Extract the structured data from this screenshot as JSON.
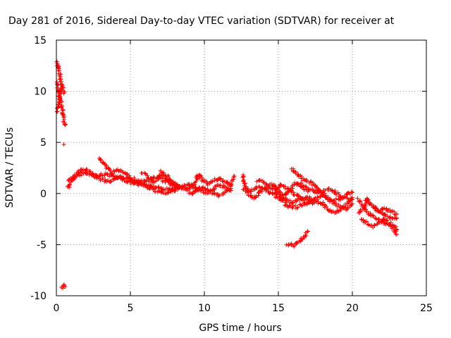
{
  "chart_data": {
    "type": "scatter",
    "title": "Day 281 of 2016, Sidereal Day-to-day VTEC variation (SDTVAR) for receiver at",
    "xlabel": "GPS time / hours",
    "ylabel": "SDTVAR / TECUs",
    "xlim": [
      0,
      25
    ],
    "ylim": [
      -10,
      15
    ],
    "xticks": [
      "0",
      "5",
      "10",
      "15",
      "20",
      "25"
    ],
    "yticks": [
      "-10",
      "-5",
      "0",
      "5",
      "10",
      "15"
    ],
    "grid": true,
    "marker": "+",
    "color": "#ff0000",
    "series": [
      {
        "points": [
          [
            0.05,
            12.9
          ],
          [
            0.1,
            12.6
          ],
          [
            0.15,
            12.2
          ],
          [
            0.2,
            11.8
          ],
          [
            0.25,
            11.4
          ],
          [
            0.3,
            11.1
          ],
          [
            0.35,
            10.9
          ],
          [
            0.4,
            10.6
          ],
          [
            0.45,
            10.2
          ],
          [
            0.5,
            9.8
          ]
        ]
      },
      {
        "points": [
          [
            0.05,
            10.9
          ],
          [
            0.1,
            10.4
          ],
          [
            0.15,
            10.0
          ],
          [
            0.2,
            9.6
          ],
          [
            0.25,
            9.3
          ],
          [
            0.3,
            9.0
          ],
          [
            0.35,
            8.6
          ],
          [
            0.4,
            8.2
          ],
          [
            0.45,
            7.8
          ],
          [
            0.5,
            7.4
          ],
          [
            0.55,
            7.0
          ],
          [
            0.6,
            6.7
          ]
        ]
      },
      {
        "points": [
          [
            0.1,
            8.0
          ],
          [
            0.15,
            8.6
          ],
          [
            0.2,
            9.2
          ],
          [
            0.25,
            9.8
          ],
          [
            0.3,
            10.3
          ]
        ]
      },
      {
        "points": [
          [
            0.5,
            4.8
          ]
        ]
      },
      {
        "points": [
          [
            0.4,
            -9.2
          ],
          [
            0.5,
            -9.0
          ],
          [
            0.6,
            -9.1
          ]
        ]
      },
      {
        "points": [
          [
            0.8,
            0.5
          ],
          [
            1.0,
            1.2
          ],
          [
            1.3,
            1.8
          ],
          [
            1.6,
            2.2
          ],
          [
            1.9,
            2.4
          ],
          [
            2.2,
            2.2
          ],
          [
            2.5,
            1.9
          ],
          [
            2.8,
            1.7
          ],
          [
            3.2,
            1.9
          ],
          [
            3.6,
            1.8
          ],
          [
            4.0,
            1.6
          ],
          [
            4.4,
            1.4
          ],
          [
            4.8,
            1.2
          ],
          [
            5.2,
            1.0
          ],
          [
            5.6,
            0.9
          ],
          [
            6.0,
            0.8
          ],
          [
            6.5,
            0.7
          ],
          [
            7.0,
            0.5
          ],
          [
            7.5,
            0.4
          ],
          [
            8.0,
            0.5
          ]
        ]
      },
      {
        "points": [
          [
            0.8,
            1.3
          ],
          [
            1.2,
            1.5
          ],
          [
            1.6,
            1.9
          ],
          [
            2.0,
            2.0
          ],
          [
            2.4,
            1.8
          ],
          [
            2.8,
            1.5
          ],
          [
            3.2,
            1.3
          ],
          [
            3.6,
            1.2
          ],
          [
            4.0,
            1.4
          ],
          [
            4.4,
            1.6
          ],
          [
            4.8,
            1.5
          ],
          [
            5.2,
            1.3
          ],
          [
            5.6,
            1.1
          ],
          [
            6.0,
            1.2
          ],
          [
            6.4,
            1.4
          ],
          [
            6.8,
            1.6
          ],
          [
            7.2,
            1.3
          ],
          [
            7.6,
            1.0
          ],
          [
            8.0,
            0.8
          ],
          [
            8.5,
            0.6
          ]
        ]
      },
      {
        "points": [
          [
            2.9,
            3.4
          ],
          [
            3.2,
            2.9
          ],
          [
            3.5,
            2.4
          ],
          [
            3.8,
            2.0
          ],
          [
            4.2,
            2.3
          ],
          [
            4.6,
            2.0
          ],
          [
            5.0,
            1.6
          ],
          [
            5.4,
            1.3
          ],
          [
            5.8,
            1.0
          ],
          [
            6.2,
            0.6
          ],
          [
            6.6,
            0.3
          ],
          [
            7.0,
            0.2
          ],
          [
            7.4,
            0.1
          ],
          [
            7.8,
            0.3
          ],
          [
            8.2,
            0.4
          ]
        ]
      },
      {
        "points": [
          [
            5.8,
            2.0
          ],
          [
            6.2,
            1.6
          ],
          [
            6.6,
            1.1
          ],
          [
            7.0,
            1.8
          ],
          [
            7.4,
            1.5
          ],
          [
            7.8,
            1.0
          ],
          [
            8.2,
            0.6
          ],
          [
            8.6,
            0.7
          ],
          [
            9.0,
            0.9
          ],
          [
            9.4,
            0.5
          ],
          [
            9.8,
            0.2
          ],
          [
            10.2,
            0.1
          ],
          [
            10.6,
            0.4
          ],
          [
            11.0,
            0.8
          ],
          [
            11.4,
            0.6
          ],
          [
            11.8,
            0.3
          ]
        ]
      },
      {
        "points": [
          [
            7.0,
            2.1
          ],
          [
            7.4,
            1.8
          ],
          [
            7.8,
            1.2
          ],
          [
            8.2,
            0.8
          ],
          [
            8.6,
            0.5
          ],
          [
            9.0,
            0.4
          ],
          [
            9.4,
            1.0
          ],
          [
            9.6,
            1.9
          ],
          [
            9.9,
            1.3
          ],
          [
            10.2,
            0.9
          ],
          [
            10.6,
            1.2
          ],
          [
            11.0,
            1.5
          ],
          [
            11.4,
            1.1
          ],
          [
            11.8,
            0.7
          ],
          [
            12.0,
            1.7
          ]
        ]
      },
      {
        "points": [
          [
            9.0,
            0.0
          ],
          [
            9.4,
            0.2
          ],
          [
            9.8,
            0.6
          ],
          [
            10.2,
            0.3
          ],
          [
            10.6,
            0.0
          ],
          [
            11.0,
            -0.2
          ],
          [
            11.4,
            0.1
          ],
          [
            11.8,
            0.5
          ]
        ]
      },
      {
        "points": [
          [
            12.6,
            1.8
          ],
          [
            12.7,
            1.2
          ],
          [
            12.8,
            0.5
          ],
          [
            13.0,
            0.1
          ],
          [
            13.3,
            0.3
          ],
          [
            13.6,
            0.6
          ],
          [
            14.0,
            0.5
          ],
          [
            14.4,
            0.1
          ],
          [
            14.8,
            0.0
          ],
          [
            15.2,
            -0.3
          ],
          [
            15.6,
            -0.7
          ],
          [
            16.0,
            -0.9
          ],
          [
            16.4,
            -0.6
          ],
          [
            16.8,
            -0.4
          ],
          [
            17.2,
            -0.5
          ]
        ]
      },
      {
        "points": [
          [
            12.6,
            0.5
          ],
          [
            13.0,
            -0.1
          ],
          [
            13.4,
            -0.4
          ],
          [
            13.8,
            0.2
          ],
          [
            14.2,
            0.6
          ],
          [
            14.6,
            0.9
          ],
          [
            15.0,
            0.2
          ],
          [
            15.4,
            -0.2
          ],
          [
            15.8,
            0.4
          ],
          [
            16.2,
            1.0
          ],
          [
            16.6,
            0.6
          ],
          [
            17.0,
            0.2
          ]
        ]
      },
      {
        "points": [
          [
            13.6,
            1.3
          ],
          [
            14.0,
            1.1
          ],
          [
            14.4,
            0.6
          ],
          [
            14.8,
            0.4
          ],
          [
            15.2,
            0.9
          ],
          [
            15.6,
            0.5
          ],
          [
            16.0,
            0.0
          ],
          [
            16.4,
            -0.3
          ],
          [
            16.8,
            -0.6
          ],
          [
            17.2,
            -0.8
          ],
          [
            17.6,
            -0.5
          ],
          [
            18.0,
            -0.2
          ],
          [
            18.4,
            -0.6
          ],
          [
            18.8,
            -1.0
          ],
          [
            19.2,
            -1.3
          ],
          [
            19.6,
            -1.5
          ],
          [
            20.0,
            -1.0
          ]
        ]
      },
      {
        "points": [
          [
            14.8,
            -0.3
          ],
          [
            15.2,
            -0.6
          ],
          [
            15.6,
            -1.2
          ],
          [
            16.0,
            -1.4
          ],
          [
            16.4,
            -1.2
          ],
          [
            16.8,
            -1.0
          ],
          [
            17.2,
            -0.9
          ],
          [
            17.6,
            -0.8
          ],
          [
            18.0,
            -1.0
          ],
          [
            18.4,
            -1.6
          ],
          [
            18.8,
            -1.8
          ],
          [
            19.2,
            -1.6
          ],
          [
            19.6,
            -1.0
          ],
          [
            20.0,
            -0.4
          ]
        ]
      },
      {
        "points": [
          [
            15.6,
            -4.9
          ],
          [
            16.0,
            -5.1
          ],
          [
            16.4,
            -4.7
          ],
          [
            16.7,
            -4.3
          ],
          [
            17.0,
            -3.7
          ]
        ]
      },
      {
        "points": [
          [
            15.9,
            2.4
          ],
          [
            16.2,
            2.1
          ],
          [
            16.6,
            1.4
          ],
          [
            17.0,
            1.2
          ],
          [
            17.4,
            0.9
          ],
          [
            17.8,
            0.3
          ],
          [
            18.2,
            -0.3
          ],
          [
            18.6,
            -0.7
          ],
          [
            19.0,
            -0.6
          ],
          [
            19.4,
            -0.3
          ],
          [
            19.8,
            0.0
          ],
          [
            20.0,
            0.1
          ]
        ]
      },
      {
        "points": [
          [
            16.4,
            1.0
          ],
          [
            16.8,
            0.7
          ],
          [
            17.2,
            0.4
          ],
          [
            17.6,
            0.1
          ],
          [
            18.0,
            0.2
          ],
          [
            18.4,
            0.5
          ],
          [
            18.8,
            0.2
          ],
          [
            19.2,
            -0.2
          ],
          [
            19.6,
            -0.5
          ],
          [
            20.0,
            -0.6
          ]
        ]
      },
      {
        "points": [
          [
            20.4,
            -0.6
          ],
          [
            20.7,
            -1.2
          ],
          [
            21.0,
            -1.8
          ],
          [
            21.3,
            -2.2
          ],
          [
            21.6,
            -2.4
          ],
          [
            21.9,
            -2.6
          ],
          [
            22.2,
            -2.9
          ],
          [
            22.5,
            -3.1
          ],
          [
            22.8,
            -3.4
          ],
          [
            23.0,
            -4.0
          ]
        ]
      },
      {
        "points": [
          [
            20.4,
            -1.8
          ],
          [
            20.8,
            -1.4
          ],
          [
            21.0,
            -0.4
          ],
          [
            21.2,
            -1.0
          ],
          [
            21.6,
            -1.6
          ],
          [
            22.0,
            -2.0
          ],
          [
            22.4,
            -2.2
          ],
          [
            22.8,
            -2.5
          ],
          [
            23.0,
            -2.4
          ]
        ]
      },
      {
        "points": [
          [
            20.6,
            -2.5
          ],
          [
            21.0,
            -2.9
          ],
          [
            21.4,
            -3.2
          ],
          [
            21.8,
            -2.8
          ],
          [
            22.2,
            -2.5
          ],
          [
            22.6,
            -3.0
          ],
          [
            23.0,
            -3.5
          ]
        ]
      },
      {
        "points": [
          [
            21.4,
            -1.3
          ],
          [
            21.8,
            -1.7
          ],
          [
            22.2,
            -1.4
          ],
          [
            22.6,
            -1.8
          ],
          [
            23.0,
            -2.0
          ]
        ]
      }
    ]
  }
}
